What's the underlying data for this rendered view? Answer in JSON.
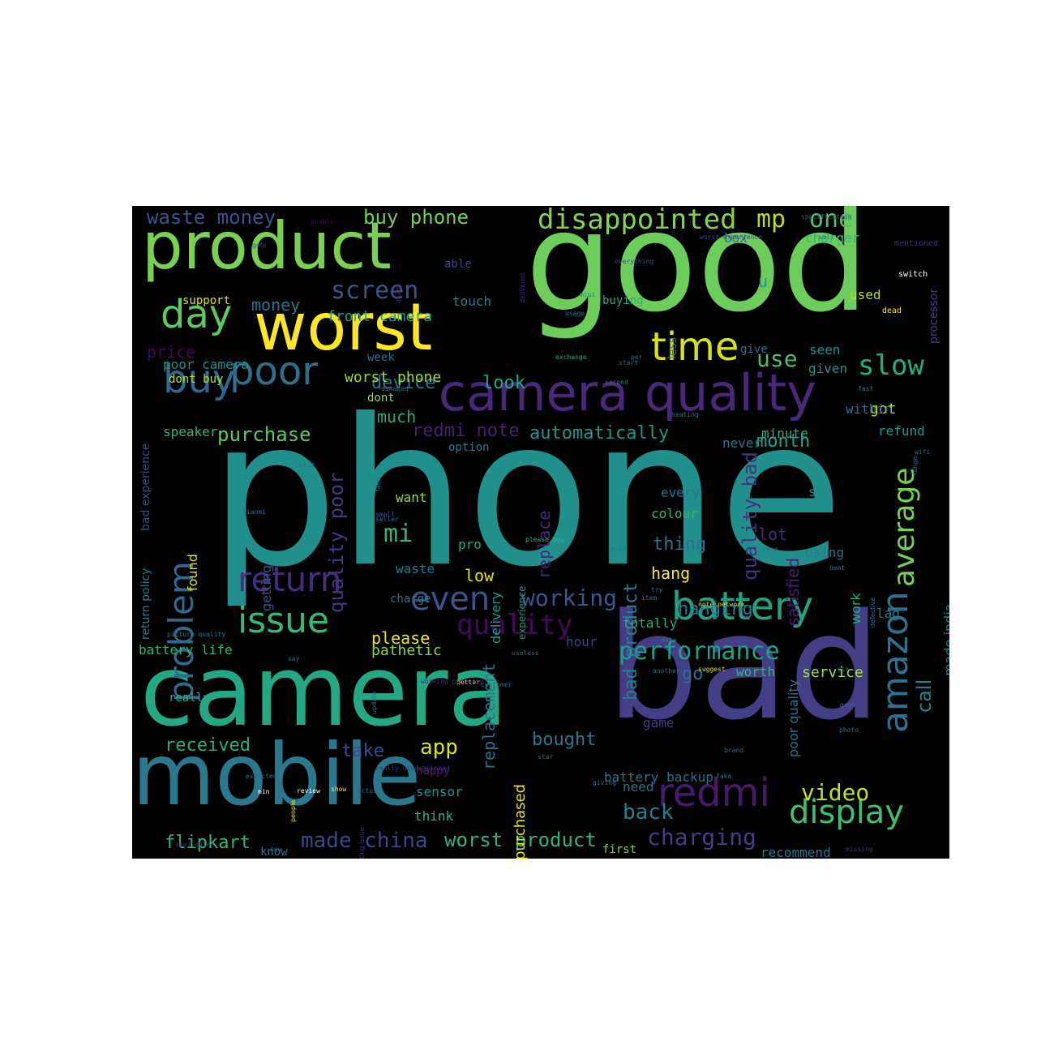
{
  "wordcloud": {
    "background": "#000000",
    "words": [
      {
        "text": "phone",
        "color": "#21908d"
      },
      {
        "text": "good",
        "color": "#6ccd5a"
      },
      {
        "text": "bad",
        "color": "#433e85"
      },
      {
        "text": "camera",
        "color": "#24a884"
      },
      {
        "text": "mobile",
        "color": "#2a788e"
      },
      {
        "text": "product",
        "color": "#7ad151"
      },
      {
        "text": "worst",
        "color": "#fde725"
      },
      {
        "text": "camera quality",
        "color": "#482878"
      },
      {
        "text": "buy",
        "color": "#31688e"
      },
      {
        "text": "poor",
        "color": "#2d708e"
      },
      {
        "text": "day",
        "color": "#5ec962"
      },
      {
        "text": "time",
        "color": "#d8e219"
      },
      {
        "text": "return",
        "color": "#472d7b"
      },
      {
        "text": "even",
        "color": "#3b528b"
      },
      {
        "text": "issue",
        "color": "#37b878"
      },
      {
        "text": "battery",
        "color": "#20a386"
      },
      {
        "text": "amazon",
        "color": "#2c728e"
      },
      {
        "text": "redmi",
        "color": "#481a6c"
      },
      {
        "text": "display",
        "color": "#42be71"
      },
      {
        "text": "problem",
        "color": "#31688e"
      },
      {
        "text": "average",
        "color": "#75d054"
      },
      {
        "text": "disappointed",
        "color": "#84d44b"
      },
      {
        "text": "slow",
        "color": "#25ac82"
      },
      {
        "text": "performance",
        "color": "#1fa088"
      },
      {
        "text": "working",
        "color": "#38588c"
      },
      {
        "text": "quality",
        "color": "#46085c"
      },
      {
        "text": "screen",
        "color": "#3b528b"
      },
      {
        "text": "one",
        "color": "#4ec36b"
      },
      {
        "text": "mp",
        "color": "#b5de2b"
      },
      {
        "text": "use",
        "color": "#48c16e"
      },
      {
        "text": "video",
        "color": "#c0df25"
      },
      {
        "text": "charging",
        "color": "#433e85"
      },
      {
        "text": "made china",
        "color": "#3f4788"
      },
      {
        "text": "worst product",
        "color": "#2fb47c"
      },
      {
        "text": "app",
        "color": "#dde318"
      },
      {
        "text": "back",
        "color": "#277f8e"
      },
      {
        "text": "mi",
        "color": "#35b779"
      },
      {
        "text": "call",
        "color": "#25848e"
      },
      {
        "text": "waste money",
        "color": "#3b528b"
      },
      {
        "text": "buy phone",
        "color": "#73d056"
      },
      {
        "text": "money",
        "color": "#2c728e"
      },
      {
        "text": "front camera",
        "color": "#1f9e89"
      },
      {
        "text": "purchase",
        "color": "#5ec962"
      },
      {
        "text": "redmi note",
        "color": "#482173"
      },
      {
        "text": "automatically",
        "color": "#1f968b"
      },
      {
        "text": "quality poor",
        "color": "#453882"
      },
      {
        "text": "quality bad",
        "color": "#46327e"
      },
      {
        "text": "bad product",
        "color": "#277f8e"
      },
      {
        "text": "replacement",
        "color": "#2c728e"
      },
      {
        "text": "flipkart",
        "color": "#32b67a"
      },
      {
        "text": "received",
        "color": "#25ac82"
      },
      {
        "text": "take",
        "color": "#3e4a89"
      },
      {
        "text": "bought",
        "color": "#2a788e"
      },
      {
        "text": "hanging",
        "color": "#2a788e"
      },
      {
        "text": "month",
        "color": "#1fa088"
      },
      {
        "text": "device",
        "color": "#2c728e"
      },
      {
        "text": "worst phone",
        "color": "#a2da37"
      },
      {
        "text": "look",
        "color": "#22a785"
      },
      {
        "text": "got",
        "color": "#bddf26"
      },
      {
        "text": "much",
        "color": "#26ad81"
      },
      {
        "text": "please",
        "color": "#f1e51d"
      },
      {
        "text": "pathetic",
        "color": "#8bd646"
      },
      {
        "text": "low",
        "color": "#e5e419"
      },
      {
        "text": "hang",
        "color": "#f8e621"
      },
      {
        "text": "thing",
        "color": "#2d708e"
      },
      {
        "text": "lot",
        "color": "#472d7b"
      },
      {
        "text": "go",
        "color": "#2d708e"
      },
      {
        "text": "worth",
        "color": "#32b67a"
      },
      {
        "text": "service",
        "color": "#a5db36"
      },
      {
        "text": "totally",
        "color": "#27ad81"
      },
      {
        "text": "hour",
        "color": "#3f4788"
      },
      {
        "text": "battery life",
        "color": "#35b779"
      },
      {
        "text": "price",
        "color": "#46085c"
      },
      {
        "text": "poor camera",
        "color": "#21918c"
      },
      {
        "text": "dont buy",
        "color": "#bddf26"
      },
      {
        "text": "speaker",
        "color": "#2fb47c"
      },
      {
        "text": "support",
        "color": "#dde318"
      },
      {
        "text": "touch",
        "color": "#26828e"
      },
      {
        "text": "able",
        "color": "#414487"
      },
      {
        "text": "box",
        "color": "#2a788e"
      },
      {
        "text": "u",
        "color": "#1f988b"
      },
      {
        "text": "used",
        "color": "#b8de29"
      },
      {
        "text": "charger",
        "color": "#35b779"
      },
      {
        "text": "seen",
        "color": "#21918c"
      },
      {
        "text": "given",
        "color": "#21918c"
      },
      {
        "text": "within",
        "color": "#2c728e"
      },
      {
        "text": "refund",
        "color": "#1f988b"
      },
      {
        "text": "minute",
        "color": "#27ad81"
      },
      {
        "text": "never",
        "color": "#2a788e"
      },
      {
        "text": "option",
        "color": "#2a788e"
      },
      {
        "text": "want",
        "color": "#9bd93c"
      },
      {
        "text": "pro",
        "color": "#20a386"
      },
      {
        "text": "waste",
        "color": "#2a788e"
      },
      {
        "text": "charge",
        "color": "#2c728e"
      },
      {
        "text": "replace",
        "color": "#482878"
      },
      {
        "text": "delivery",
        "color": "#1e9b8a"
      },
      {
        "text": "every",
        "color": "#2c728e"
      },
      {
        "text": "colour",
        "color": "#32b67a"
      },
      {
        "text": "sim",
        "color": "#21918c"
      },
      {
        "text": "using",
        "color": "#2a788e"
      },
      {
        "text": "work",
        "color": "#25ac82"
      },
      {
        "text": "lag",
        "color": "#2a788e"
      },
      {
        "text": "made india",
        "color": "#277f8e"
      },
      {
        "text": "satisfied",
        "color": "#481f70"
      },
      {
        "text": "game",
        "color": "#433e85"
      },
      {
        "text": "battery backup",
        "color": "#2d708e"
      },
      {
        "text": "need",
        "color": "#2c728e"
      },
      {
        "text": "poor quality",
        "color": "#2c728e"
      },
      {
        "text": "recommend",
        "color": "#2a788e"
      },
      {
        "text": "first",
        "color": "#7ad151"
      },
      {
        "text": "know",
        "color": "#2c728e"
      },
      {
        "text": "think",
        "color": "#2fb47c"
      },
      {
        "text": "sensor",
        "color": "#1f968b"
      },
      {
        "text": "happy",
        "color": "#482173"
      },
      {
        "text": "purchased",
        "color": "#eae51a"
      },
      {
        "text": "really",
        "color": "#27ad81"
      },
      {
        "text": "return policy",
        "color": "#2a788e"
      },
      {
        "text": "bad experience",
        "color": "#3e4a89"
      },
      {
        "text": "found",
        "color": "#e2e418"
      },
      {
        "text": "getting",
        "color": "#39558c"
      },
      {
        "text": "experience",
        "color": "#1f968b"
      },
      {
        "text": "week",
        "color": "#2d708e"
      },
      {
        "text": "dont",
        "color": "#9fda3a"
      },
      {
        "text": "buying",
        "color": "#27ad81"
      },
      {
        "text": "less",
        "color": "#2a788e"
      },
      {
        "text": "give",
        "color": "#2d708e"
      },
      {
        "text": "processor",
        "color": "#433e85"
      },
      {
        "text": "dead",
        "color": "#fde725"
      },
      {
        "text": "switch",
        "color": "#ffffff"
      },
      {
        "text": "mentioned",
        "color": "#46327e"
      },
      {
        "text": "well",
        "color": "#2a788e"
      },
      {
        "text": "worst experience",
        "color": "#414487"
      },
      {
        "text": "specification",
        "color": "#39558c"
      },
      {
        "text": "unable",
        "color": "#46085c"
      },
      {
        "text": "gets",
        "color": "#3b528b"
      },
      {
        "text": "image",
        "color": "#46327e"
      },
      {
        "text": "delivered",
        "color": "#482878"
      },
      {
        "text": "everything",
        "color": "#3e4a89"
      },
      {
        "text": "miui",
        "color": "#2a788e"
      },
      {
        "text": "usage",
        "color": "#2c728e"
      },
      {
        "text": "exchange",
        "color": "#27ad81"
      },
      {
        "text": "start",
        "color": "#2c728e"
      },
      {
        "text": "per",
        "color": "#2c728e"
      },
      {
        "text": "second",
        "color": "#2c728e"
      },
      {
        "text": "fast",
        "color": "#2a788e"
      },
      {
        "text": "damaged",
        "color": "#2c728e"
      },
      {
        "text": "heating",
        "color": "#2c728e"
      },
      {
        "text": "range",
        "color": "#2d708e"
      },
      {
        "text": "said",
        "color": "#2c728e"
      },
      {
        "text": "face",
        "color": "#2c728e"
      },
      {
        "text": "wifi",
        "color": "#2c728e"
      },
      {
        "text": "small",
        "color": "#3b528b"
      },
      {
        "text": "seller",
        "color": "#2d708e"
      },
      {
        "text": "xiaomi",
        "color": "#2d708e"
      },
      {
        "text": "please buy",
        "color": "#2fb47c"
      },
      {
        "text": "full",
        "color": "#2d708e"
      },
      {
        "text": "come",
        "color": "#2d708e"
      },
      {
        "text": "heat",
        "color": "#2d708e"
      },
      {
        "text": "try",
        "color": "#2d708e"
      },
      {
        "text": "item",
        "color": "#2d708e"
      },
      {
        "text": "note network",
        "color": "#dde318"
      },
      {
        "text": "defective",
        "color": "#2d708e"
      },
      {
        "text": "picture quality",
        "color": "#2d708e"
      },
      {
        "text": "say",
        "color": "#2d708e"
      },
      {
        "text": "data",
        "color": "#2d708e"
      },
      {
        "text": "useless",
        "color": "#2d708e"
      },
      {
        "text": "another",
        "color": "#2d708e"
      },
      {
        "text": "better",
        "color": "#fde725"
      },
      {
        "text": "update",
        "color": "#2d708e"
      },
      {
        "text": "working properly",
        "color": "#472d7b"
      },
      {
        "text": "customer",
        "color": "#2d708e"
      },
      {
        "text": "suggest",
        "color": "#dde318"
      },
      {
        "text": "plr",
        "color": "#2d708e"
      },
      {
        "text": "guys",
        "color": "#2d708e"
      },
      {
        "text": "photo",
        "color": "#2d708e"
      },
      {
        "text": "brand",
        "color": "#2d708e"
      },
      {
        "text": "fake",
        "color": "#2d708e"
      },
      {
        "text": "star",
        "color": "#2d708e"
      },
      {
        "text": "expected",
        "color": "#2d708e"
      },
      {
        "text": "people",
        "color": "#fde725"
      },
      {
        "text": "really disappointed",
        "color": "#46327e"
      },
      {
        "text": "review",
        "color": "#ffffff"
      },
      {
        "text": "show",
        "color": "#fde725"
      },
      {
        "text": "min",
        "color": "#ffffff"
      },
      {
        "text": "picture",
        "color": "#2d708e"
      },
      {
        "text": "giving",
        "color": "#2d708e"
      },
      {
        "text": "heating issue",
        "color": "#46327e"
      },
      {
        "text": "available",
        "color": "#46327e"
      },
      {
        "text": "new",
        "color": "#2d708e"
      },
      {
        "text": "missing",
        "color": "#46327e"
      }
    ]
  }
}
